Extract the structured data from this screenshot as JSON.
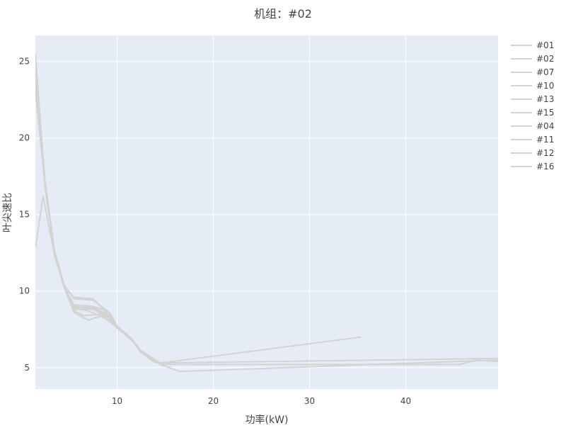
{
  "chart_data": {
    "type": "line",
    "title": "机组：#02",
    "xlabel": "功率(kW)",
    "ylabel": "叶尖速比",
    "xlim": [
      1.5,
      49.6
    ],
    "ylim": [
      3.6,
      26.7
    ],
    "xticks": [
      10,
      20,
      30,
      40
    ],
    "yticks": [
      5,
      10,
      15,
      20,
      25
    ],
    "grid": true,
    "legend": "right",
    "colors": {
      "line": "#d3d3d3",
      "plot_bg": "#e5ecf6",
      "grid": "#ffffff"
    },
    "series": [
      {
        "name": "#01",
        "x": [
          1.5,
          2.5,
          3.5,
          4.5,
          5.5,
          7.5,
          9.3,
          10,
          11.5,
          12.5,
          14.5,
          35.4
        ],
        "y": [
          25.5,
          17,
          12.5,
          10.3,
          9.6,
          9.5,
          8.3,
          7.6,
          6.8,
          6,
          5.3,
          7.0
        ]
      },
      {
        "name": "#02",
        "x": [
          1.5,
          2.3,
          3.5,
          4.5,
          5.5,
          7,
          8.5,
          10,
          11.5,
          12.5,
          14.5,
          49.6
        ],
        "y": [
          12.8,
          16.2,
          12.3,
          10.3,
          8.6,
          8.1,
          8.4,
          7.6,
          6.8,
          6,
          5.3,
          5.6
        ]
      },
      {
        "name": "#07",
        "x": [
          1.5,
          2.5,
          3.5,
          4.5,
          5.5,
          7.5,
          9,
          10,
          11.5,
          12.5,
          14.5,
          16.5,
          49.6
        ],
        "y": [
          24.5,
          17,
          12.5,
          10.3,
          9.0,
          8.9,
          8.5,
          7.6,
          6.8,
          6,
          5.2,
          4.75,
          5.5
        ]
      },
      {
        "name": "#10",
        "x": [
          1.5,
          2.5,
          3.5,
          4.5,
          5.5,
          7.5,
          9,
          10,
          11.5,
          12.5,
          14.5,
          45.6,
          47.4,
          49.6
        ],
        "y": [
          25,
          17.2,
          12.6,
          10.3,
          8.9,
          9.0,
          8.4,
          7.6,
          6.8,
          6,
          5.2,
          5.2,
          5.5,
          5.4
        ]
      },
      {
        "name": "#13",
        "x": [
          1.5,
          2.5,
          3.5,
          4.5,
          5.5,
          6.5,
          8.5,
          9.5
        ],
        "y": [
          24,
          16.8,
          12.4,
          10.2,
          8.7,
          8.4,
          8.5,
          8.2
        ]
      },
      {
        "name": "#15",
        "x": [
          1.5,
          2.5,
          3.5,
          4.5,
          5.5,
          7.5,
          9,
          9.5,
          10,
          11.5,
          12.5,
          14.5
        ],
        "y": [
          23.5,
          16.9,
          12.5,
          10.3,
          9.1,
          9.0,
          8.7,
          8.3,
          7.7,
          6.9,
          6.1,
          5.3
        ]
      },
      {
        "name": "#04",
        "x": [
          1.5,
          2.5,
          3.5,
          4.5,
          5.5,
          7.5,
          9,
          10,
          11.5,
          12.5,
          14.5,
          15.5
        ],
        "y": [
          25.2,
          17.1,
          12.5,
          10.3,
          8.8,
          8.8,
          8.3,
          7.6,
          6.8,
          6,
          5.2,
          5.0
        ]
      },
      {
        "name": "#11",
        "x": [
          1.5,
          2.5,
          3.5,
          4.5,
          5.5,
          7,
          8.8,
          10,
          11.5,
          12.5,
          14.5
        ],
        "y": [
          24.8,
          16.9,
          12.4,
          10.3,
          8.9,
          8.7,
          8.2,
          7.6,
          6.8,
          6.1,
          5.2
        ]
      },
      {
        "name": "#12",
        "x": [
          1.5,
          2.5,
          3.5,
          4.5,
          5.5,
          7.5,
          9.2,
          10,
          11.5,
          12.5,
          14
        ],
        "y": [
          23,
          17,
          12.6,
          10.4,
          9.5,
          9.4,
          8.6,
          7.7,
          6.9,
          6.0,
          5.3
        ]
      },
      {
        "name": "#16",
        "x": [
          1.5,
          2.5,
          3.5,
          4.5,
          5.5,
          7.5,
          9,
          10,
          11.5,
          12.5,
          14.5,
          15
        ],
        "y": [
          24.2,
          17.1,
          12.5,
          10.3,
          9.0,
          8.8,
          8.4,
          7.6,
          6.8,
          6.0,
          5.2,
          5.1
        ]
      }
    ]
  }
}
